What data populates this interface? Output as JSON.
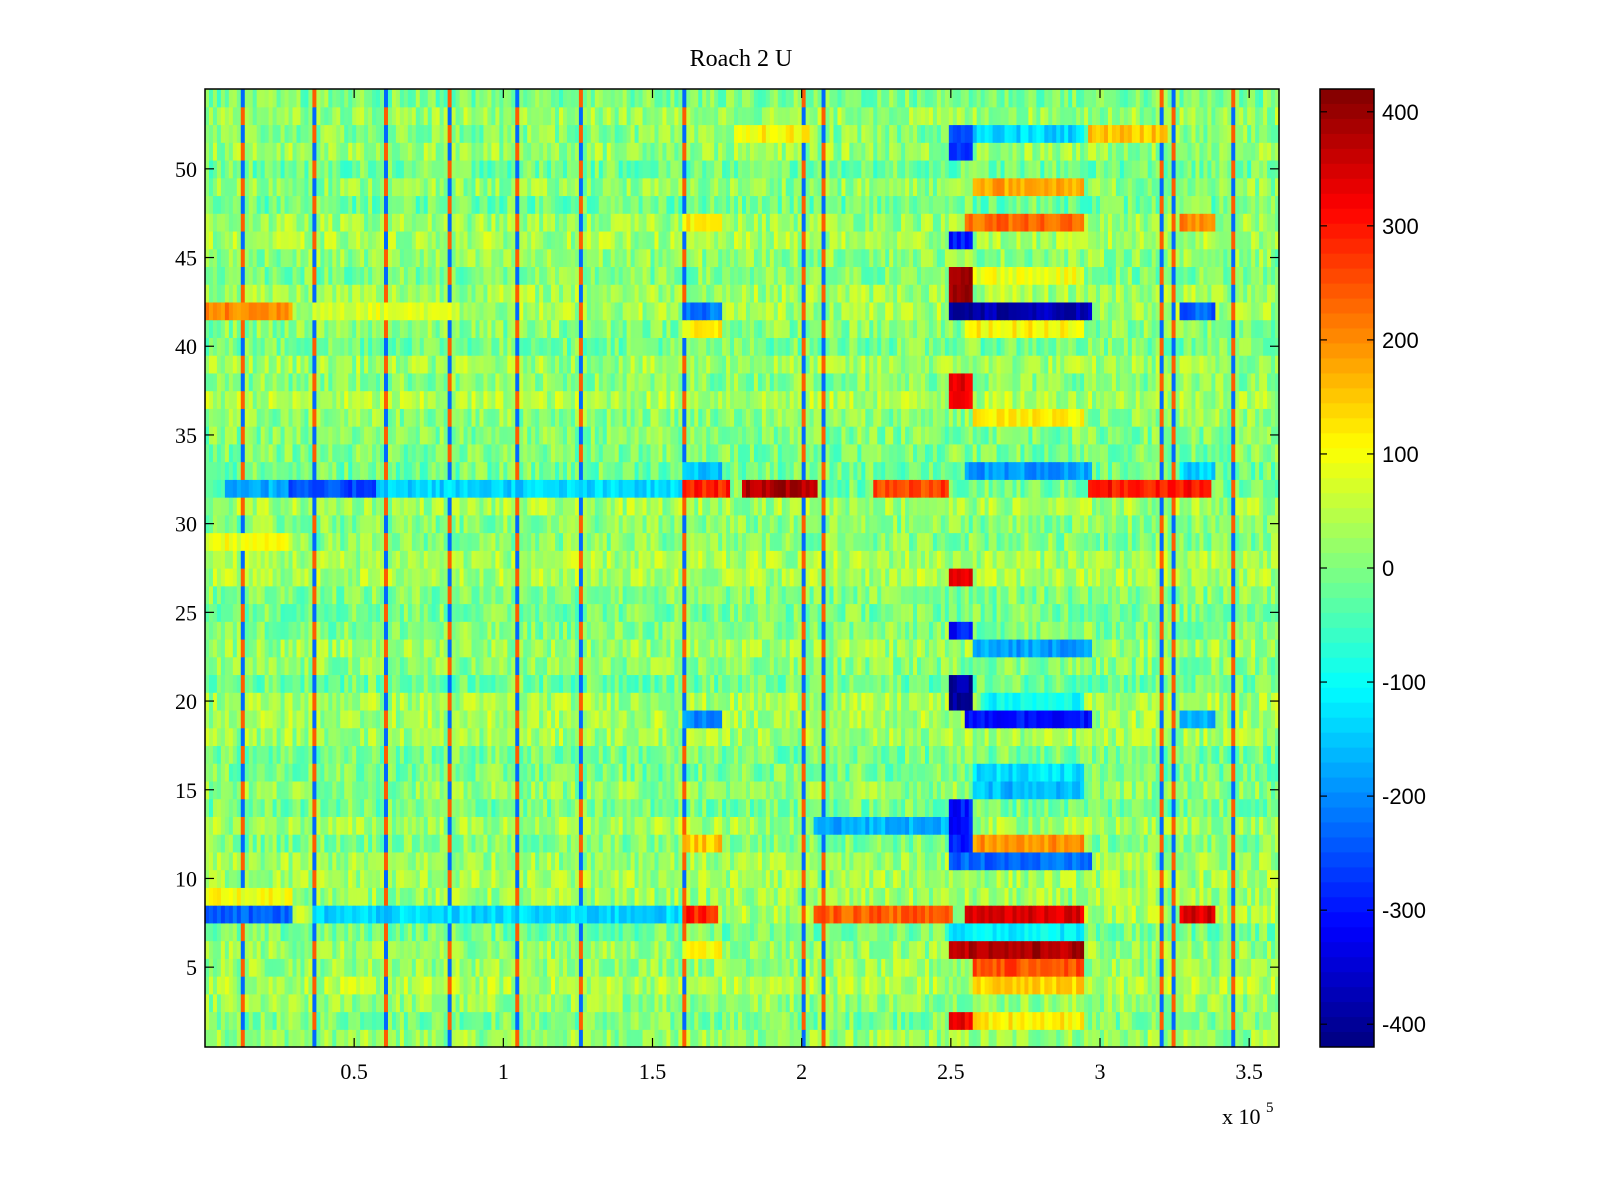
{
  "chart_data": {
    "type": "heatmap",
    "title": "Roach 2 U",
    "xlabel": "",
    "ylabel": "",
    "x_multiplier_label": "x 10",
    "x_multiplier_exponent": "5",
    "xlim": [
      0,
      360000
    ],
    "ylim": [
      0.5,
      54.5
    ],
    "x_ticks": [
      {
        "value": 50000,
        "label": "0.5"
      },
      {
        "value": 100000,
        "label": "1"
      },
      {
        "value": 150000,
        "label": "1.5"
      },
      {
        "value": 200000,
        "label": "2"
      },
      {
        "value": 250000,
        "label": "2.5"
      },
      {
        "value": 300000,
        "label": "3"
      },
      {
        "value": 350000,
        "label": "3.5"
      }
    ],
    "y_ticks": [
      {
        "value": 5,
        "label": "5"
      },
      {
        "value": 10,
        "label": "10"
      },
      {
        "value": 15,
        "label": "15"
      },
      {
        "value": 20,
        "label": "20"
      },
      {
        "value": 25,
        "label": "25"
      },
      {
        "value": 30,
        "label": "30"
      },
      {
        "value": 35,
        "label": "35"
      },
      {
        "value": 40,
        "label": "40"
      },
      {
        "value": 45,
        "label": "45"
      },
      {
        "value": 50,
        "label": "50"
      }
    ],
    "rows": 54,
    "colormap": "jet",
    "colorbar": {
      "range": [
        -420,
        420
      ],
      "ticks": [
        {
          "value": 400,
          "label": "400"
        },
        {
          "value": 300,
          "label": "300"
        },
        {
          "value": 200,
          "label": "200"
        },
        {
          "value": 100,
          "label": "100"
        },
        {
          "value": 0,
          "label": "0"
        },
        {
          "value": -100,
          "label": "-100"
        },
        {
          "value": -200,
          "label": "-200"
        },
        {
          "value": -300,
          "label": "-300"
        },
        {
          "value": -400,
          "label": "-400"
        }
      ]
    },
    "grid": false,
    "features": {
      "spike_x": [
        12000,
        36000,
        60000,
        82000,
        104000,
        126000,
        160000,
        201000,
        207000,
        320000,
        324000,
        345000
      ],
      "regions": [
        {
          "rows": [
            42,
            42
          ],
          "x": [
            0,
            29000
          ],
          "value": 200
        },
        {
          "rows": [
            42,
            42
          ],
          "x": [
            36000,
            85000
          ],
          "value": 80
        },
        {
          "rows": [
            32,
            32
          ],
          "x": [
            7000,
            29000
          ],
          "value": -170
        },
        {
          "rows": [
            32,
            32
          ],
          "x": [
            29000,
            58000
          ],
          "value": -260
        },
        {
          "rows": [
            32,
            32
          ],
          "x": [
            58000,
            160000
          ],
          "value": -140
        },
        {
          "rows": [
            32,
            32
          ],
          "x": [
            161000,
            175000
          ],
          "value": 290
        },
        {
          "rows": [
            32,
            32
          ],
          "x": [
            180000,
            204000
          ],
          "value": 380
        },
        {
          "rows": [
            32,
            32
          ],
          "x": [
            224000,
            249000
          ],
          "value": 260
        },
        {
          "rows": [
            32,
            32
          ],
          "x": [
            297000,
            337000
          ],
          "value": 300
        },
        {
          "rows": [
            8,
            8
          ],
          "x": [
            0,
            29000
          ],
          "value": -240
        },
        {
          "rows": [
            8,
            8
          ],
          "x": [
            36000,
            160000
          ],
          "value": -140
        },
        {
          "rows": [
            9,
            9
          ],
          "x": [
            0,
            29000
          ],
          "value": 100
        },
        {
          "rows": [
            29,
            29
          ],
          "x": [
            0,
            29000
          ],
          "value": 90
        },
        {
          "rows": [
            8,
            8
          ],
          "x": [
            161000,
            171000
          ],
          "value": 290
        },
        {
          "rows": [
            8,
            8
          ],
          "x": [
            204000,
            250000
          ],
          "value": 240
        },
        {
          "rows": [
            8,
            8
          ],
          "x": [
            255000,
            294000
          ],
          "value": 350
        },
        {
          "rows": [
            8,
            8
          ],
          "x": [
            327000,
            338000
          ],
          "value": 350
        },
        {
          "rows": [
            6,
            6
          ],
          "x": [
            250000,
            294000
          ],
          "value": 380
        },
        {
          "rows": [
            5,
            5
          ],
          "x": [
            258000,
            294000
          ],
          "value": 250
        },
        {
          "rows": [
            4,
            4
          ],
          "x": [
            258000,
            294000
          ],
          "value": 140
        },
        {
          "rows": [
            7,
            7
          ],
          "x": [
            250000,
            294000
          ],
          "value": -110
        },
        {
          "rows": [
            11,
            11
          ],
          "x": [
            250000,
            296000
          ],
          "value": -230
        },
        {
          "rows": [
            12,
            12
          ],
          "x": [
            258000,
            294000
          ],
          "value": 190
        },
        {
          "rows": [
            13,
            13
          ],
          "x": [
            205000,
            250000
          ],
          "value": -170
        },
        {
          "rows": [
            19,
            19
          ],
          "x": [
            160000,
            172000
          ],
          "value": -200
        },
        {
          "rows": [
            19,
            19
          ],
          "x": [
            255000,
            296000
          ],
          "value": -300
        },
        {
          "rows": [
            19,
            19
          ],
          "x": [
            327000,
            338000
          ],
          "value": -180
        },
        {
          "rows": [
            20,
            21
          ],
          "x": [
            250000,
            256000
          ],
          "value": -400
        },
        {
          "rows": [
            20,
            20
          ],
          "x": [
            260000,
            294000
          ],
          "value": -100
        },
        {
          "rows": [
            16,
            16
          ],
          "x": [
            258000,
            294000
          ],
          "value": -130
        },
        {
          "rows": [
            15,
            15
          ],
          "x": [
            258000,
            294000
          ],
          "value": -160
        },
        {
          "rows": [
            23,
            23
          ],
          "x": [
            258000,
            296000
          ],
          "value": -180
        },
        {
          "rows": [
            24,
            24
          ],
          "x": [
            250000,
            256000
          ],
          "value": -300
        },
        {
          "rows": [
            27,
            27
          ],
          "x": [
            250000,
            256000
          ],
          "value": 330
        },
        {
          "rows": [
            33,
            33
          ],
          "x": [
            255000,
            296000
          ],
          "value": -190
        },
        {
          "rows": [
            33,
            33
          ],
          "x": [
            160000,
            172000
          ],
          "value": -160
        },
        {
          "rows": [
            33,
            33
          ],
          "x": [
            327000,
            338000
          ],
          "value": -140
        },
        {
          "rows": [
            36,
            36
          ],
          "x": [
            258000,
            294000
          ],
          "value": 110
        },
        {
          "rows": [
            37,
            38
          ],
          "x": [
            250000,
            256000
          ],
          "value": 330
        },
        {
          "rows": [
            41,
            41
          ],
          "x": [
            255000,
            294000
          ],
          "value": 110
        },
        {
          "rows": [
            42,
            42
          ],
          "x": [
            250000,
            296000
          ],
          "value": -380
        },
        {
          "rows": [
            42,
            42
          ],
          "x": [
            160000,
            172000
          ],
          "value": -220
        },
        {
          "rows": [
            42,
            42
          ],
          "x": [
            327000,
            338000
          ],
          "value": -240
        },
        {
          "rows": [
            41,
            41
          ],
          "x": [
            160000,
            172000
          ],
          "value": 110
        },
        {
          "rows": [
            43,
            44
          ],
          "x": [
            250000,
            256000
          ],
          "value": 400
        },
        {
          "rows": [
            44,
            44
          ],
          "x": [
            258000,
            294000
          ],
          "value": 90
        },
        {
          "rows": [
            46,
            46
          ],
          "x": [
            250000,
            256000
          ],
          "value": -300
        },
        {
          "rows": [
            47,
            47
          ],
          "x": [
            255000,
            294000
          ],
          "value": 230
        },
        {
          "rows": [
            47,
            47
          ],
          "x": [
            160000,
            172000
          ],
          "value": 120
        },
        {
          "rows": [
            47,
            47
          ],
          "x": [
            327000,
            338000
          ],
          "value": 200
        },
        {
          "rows": [
            49,
            49
          ],
          "x": [
            258000,
            294000
          ],
          "value": 180
        },
        {
          "rows": [
            51,
            52
          ],
          "x": [
            250000,
            256000
          ],
          "value": -260
        },
        {
          "rows": [
            52,
            52
          ],
          "x": [
            258000,
            294000
          ],
          "value": -140
        },
        {
          "rows": [
            52,
            52
          ],
          "x": [
            178000,
            202000
          ],
          "value": 110
        },
        {
          "rows": [
            52,
            52
          ],
          "x": [
            296000,
            322000
          ],
          "value": 150
        },
        {
          "rows": [
            2,
            2
          ],
          "x": [
            250000,
            256000
          ],
          "value": 330
        },
        {
          "rows": [
            2,
            2
          ],
          "x": [
            258000,
            294000
          ],
          "value": 120
        },
        {
          "rows": [
            6,
            6
          ],
          "x": [
            160000,
            172000
          ],
          "value": 110
        },
        {
          "rows": [
            12,
            12
          ],
          "x": [
            160000,
            172000
          ],
          "value": 150
        },
        {
          "rows": [
            12,
            14
          ],
          "x": [
            250000,
            256000
          ],
          "value": -300
        }
      ]
    }
  }
}
